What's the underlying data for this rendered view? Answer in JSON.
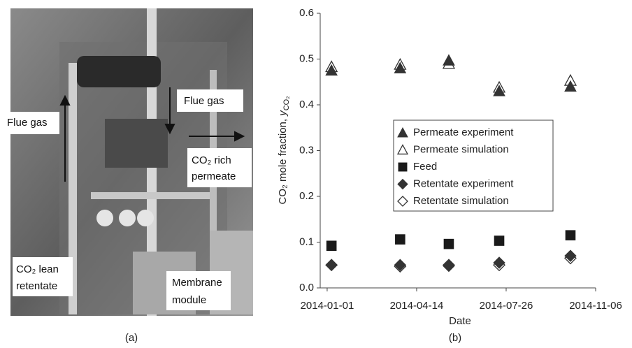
{
  "panel_a": {
    "labels": [
      [
        "Flue gas"
      ],
      [
        "Flue gas"
      ],
      [
        "CO₂ rich",
        "permeate"
      ],
      [
        "CO₂ lean",
        "retentate"
      ],
      [
        "Membrane",
        "module"
      ]
    ],
    "caption": "(a)"
  },
  "chart_data": {
    "type": "scatter",
    "caption": "(b)",
    "x_label": "Date",
    "y_label": [
      "CO₂ mole fraction, ",
      "y",
      "CO₂"
    ],
    "x": [
      "2014-01-06",
      "2014-03-26",
      "2014-05-21",
      "2014-07-18",
      "2014-10-08"
    ],
    "xlim": [
      "2013-12-24",
      "2014-11-06"
    ],
    "xticks": [
      "2014-01-01",
      "2014-04-14",
      "2014-07-26",
      "2014-11-06"
    ],
    "ylim": [
      0,
      0.6
    ],
    "yticks": [
      {
        "value": 0,
        "label": "0.0"
      },
      0.1,
      0.2,
      0.3,
      0.4,
      0.5,
      0.6
    ],
    "legend": "center right",
    "series": [
      {
        "name": "Permeate experiment",
        "color": "#333333",
        "marker": "triangle",
        "filled": true,
        "values": [
          0.475,
          0.48,
          0.497,
          0.43,
          0.44
        ]
      },
      {
        "name": "Permeate simulation",
        "color": "#333333",
        "marker": "triangle",
        "filled": false,
        "values": [
          0.483,
          0.488,
          0.49,
          0.438,
          0.453
        ]
      },
      {
        "name": "Feed",
        "color": "#1a1a1a",
        "marker": "square",
        "filled": true,
        "values": [
          0.092,
          0.106,
          0.096,
          0.103,
          0.115
        ]
      },
      {
        "name": "Retentate experiment",
        "color": "#333333",
        "marker": "diamond",
        "filled": true,
        "values": [
          0.05,
          0.05,
          0.048,
          0.055,
          0.07
        ]
      },
      {
        "name": "Retentate simulation",
        "color": "#333333",
        "marker": "diamond",
        "filled": false,
        "values": [
          0.05,
          0.047,
          0.05,
          0.05,
          0.065
        ]
      }
    ]
  }
}
